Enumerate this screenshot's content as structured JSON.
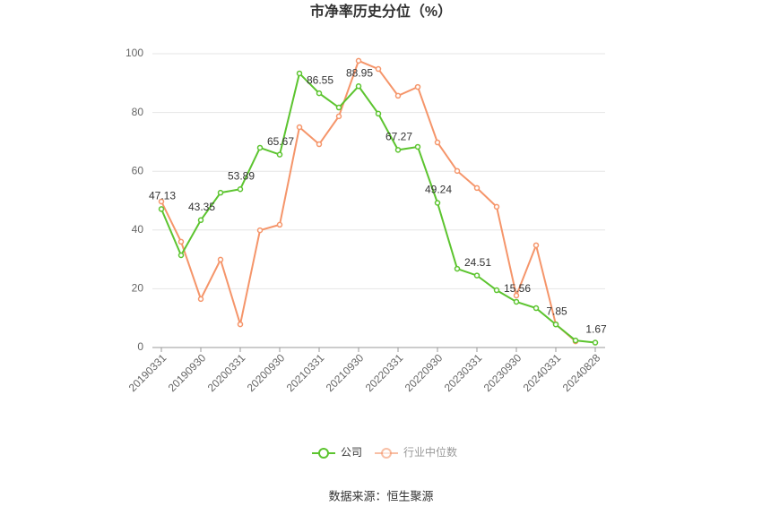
{
  "chart_data": {
    "type": "line",
    "title": "市净率历史分位（%）",
    "categories": [
      "20190331",
      null,
      "20190930",
      null,
      "20200331",
      null,
      "20200930",
      null,
      "20210331",
      null,
      "20210930",
      null,
      "20220331",
      null,
      "20220930",
      null,
      "20230331",
      null,
      "20230930",
      null,
      "20240331",
      null,
      "20240828"
    ],
    "series": [
      {
        "name": "公司",
        "color": "#5cc42f",
        "values": [
          47.13,
          31.4,
          43.35,
          52.7,
          53.89,
          68.0,
          65.67,
          93.3,
          86.55,
          81.7,
          88.95,
          79.6,
          67.27,
          68.3,
          49.24,
          26.8,
          24.51,
          19.5,
          15.56,
          13.4,
          7.85,
          2.4,
          1.67
        ]
      },
      {
        "name": "行业中位数",
        "color": "#f5956a",
        "values": [
          49.7,
          36.0,
          16.5,
          29.9,
          7.9,
          39.9,
          41.8,
          75.0,
          69.2,
          78.7,
          97.6,
          94.8,
          85.7,
          88.7,
          69.8,
          60.1,
          54.3,
          47.9,
          17.7,
          34.8,
          7.9,
          2.1,
          null
        ]
      }
    ],
    "ylim": [
      0,
      100
    ],
    "yticks": [
      0,
      20,
      40,
      60,
      80,
      100
    ],
    "grid": true,
    "source": "数据来源：恒生聚源"
  }
}
